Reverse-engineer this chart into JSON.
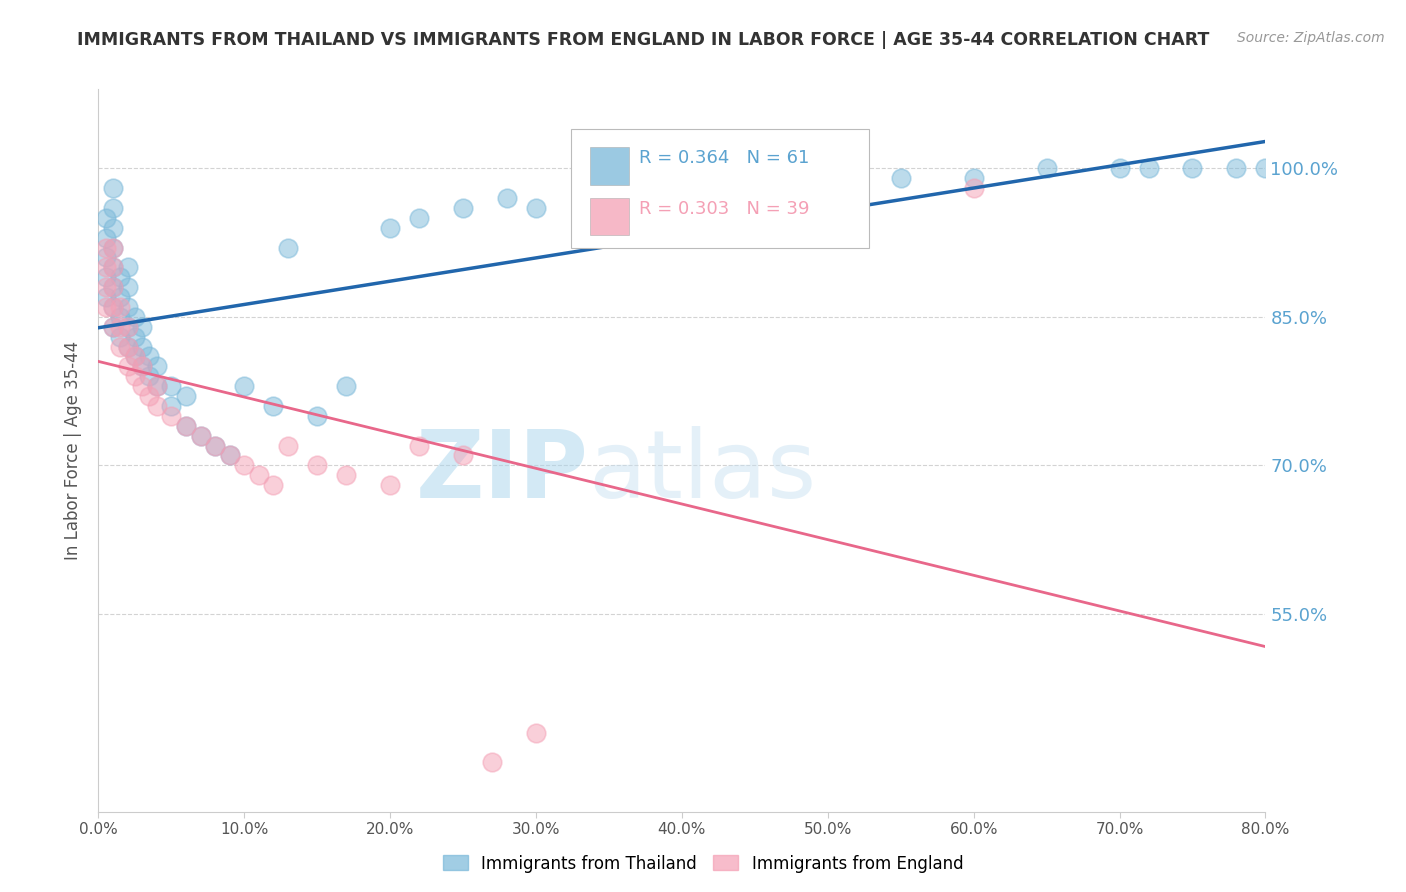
{
  "title": "IMMIGRANTS FROM THAILAND VS IMMIGRANTS FROM ENGLAND IN LABOR FORCE | AGE 35-44 CORRELATION CHART",
  "source_text": "Source: ZipAtlas.com",
  "ylabel": "In Labor Force | Age 35-44",
  "legend_label_1": "Immigrants from Thailand",
  "legend_label_2": "Immigrants from England",
  "R1": 0.364,
  "N1": 61,
  "R2": 0.303,
  "N2": 39,
  "color1": "#7ab8d9",
  "color2": "#f4a0b5",
  "trendline_color1": "#2166ac",
  "trendline_color2": "#e8678a",
  "xlim": [
    0.0,
    0.8
  ],
  "ylim": [
    0.35,
    1.08
  ],
  "yticks": [
    0.55,
    0.7,
    0.85,
    1.0
  ],
  "ytick_labels": [
    "55.0%",
    "70.0%",
    "85.0%",
    "100.0%"
  ],
  "xticks": [
    0.0,
    0.1,
    0.2,
    0.3,
    0.4,
    0.5,
    0.6,
    0.7,
    0.8
  ],
  "xtick_labels": [
    "0.0%",
    "10.0%",
    "20.0%",
    "30.0%",
    "40.0%",
    "50.0%",
    "60.0%",
    "70.0%",
    "80.0%"
  ],
  "scatter1_x": [
    0.005,
    0.005,
    0.005,
    0.005,
    0.005,
    0.01,
    0.01,
    0.01,
    0.01,
    0.01,
    0.01,
    0.01,
    0.01,
    0.015,
    0.015,
    0.015,
    0.015,
    0.02,
    0.02,
    0.02,
    0.02,
    0.02,
    0.025,
    0.025,
    0.025,
    0.03,
    0.03,
    0.03,
    0.035,
    0.035,
    0.04,
    0.04,
    0.05,
    0.05,
    0.06,
    0.06,
    0.07,
    0.08,
    0.09,
    0.1,
    0.12,
    0.13,
    0.15,
    0.17,
    0.2,
    0.22,
    0.25,
    0.28,
    0.3,
    0.35,
    0.4,
    0.45,
    0.5,
    0.55,
    0.6,
    0.65,
    0.7,
    0.72,
    0.75,
    0.78,
    0.8
  ],
  "scatter1_y": [
    0.87,
    0.89,
    0.91,
    0.93,
    0.95,
    0.84,
    0.86,
    0.88,
    0.9,
    0.92,
    0.94,
    0.96,
    0.98,
    0.83,
    0.85,
    0.87,
    0.89,
    0.82,
    0.84,
    0.86,
    0.88,
    0.9,
    0.81,
    0.83,
    0.85,
    0.8,
    0.82,
    0.84,
    0.79,
    0.81,
    0.78,
    0.8,
    0.76,
    0.78,
    0.74,
    0.77,
    0.73,
    0.72,
    0.71,
    0.78,
    0.76,
    0.92,
    0.75,
    0.78,
    0.94,
    0.95,
    0.96,
    0.97,
    0.96,
    0.97,
    0.98,
    0.98,
    0.99,
    0.99,
    0.99,
    1.0,
    1.0,
    1.0,
    1.0,
    1.0,
    1.0
  ],
  "scatter2_x": [
    0.005,
    0.005,
    0.005,
    0.005,
    0.01,
    0.01,
    0.01,
    0.01,
    0.01,
    0.015,
    0.015,
    0.015,
    0.02,
    0.02,
    0.02,
    0.025,
    0.025,
    0.03,
    0.03,
    0.035,
    0.04,
    0.04,
    0.05,
    0.06,
    0.07,
    0.08,
    0.09,
    0.1,
    0.11,
    0.12,
    0.13,
    0.15,
    0.17,
    0.2,
    0.22,
    0.25,
    0.27,
    0.3,
    0.6
  ],
  "scatter2_y": [
    0.86,
    0.88,
    0.9,
    0.92,
    0.84,
    0.86,
    0.88,
    0.9,
    0.92,
    0.82,
    0.84,
    0.86,
    0.8,
    0.82,
    0.84,
    0.79,
    0.81,
    0.78,
    0.8,
    0.77,
    0.76,
    0.78,
    0.75,
    0.74,
    0.73,
    0.72,
    0.71,
    0.7,
    0.69,
    0.68,
    0.72,
    0.7,
    0.69,
    0.68,
    0.72,
    0.71,
    0.4,
    0.43,
    0.98
  ],
  "watermark_zip": "ZIP",
  "watermark_atlas": "atlas",
  "background_color": "#ffffff",
  "grid_color": "#c8c8c8",
  "right_tick_color": "#5ba3d0",
  "title_color": "#333333",
  "source_color": "#999999",
  "axis_label_color": "#555555"
}
